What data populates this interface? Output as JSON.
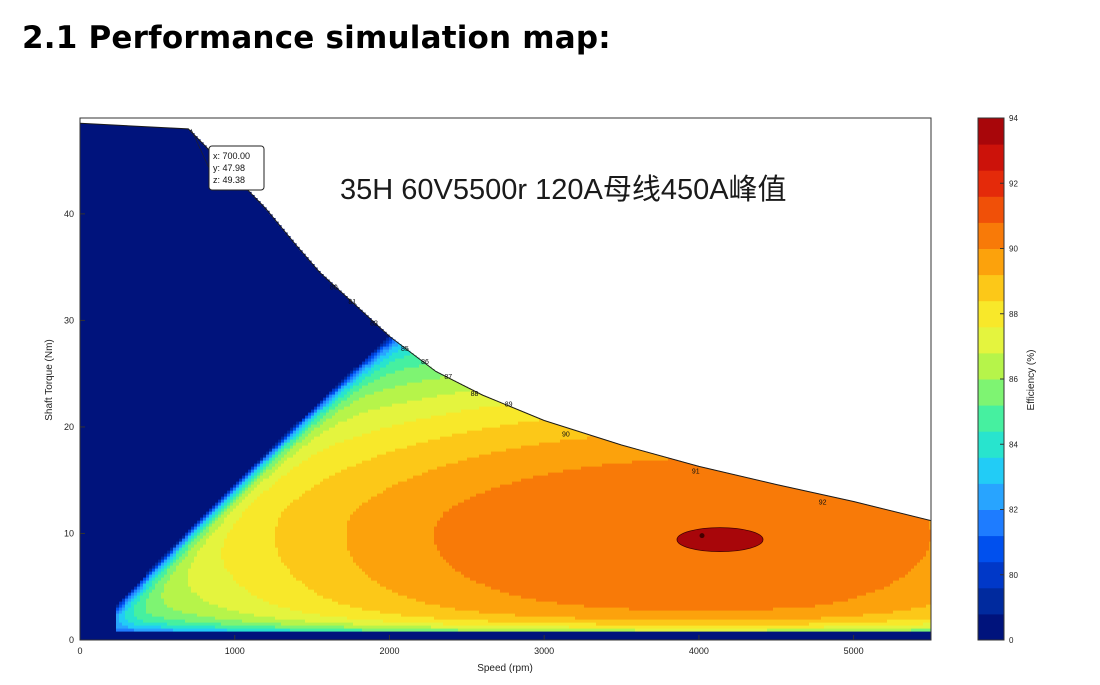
{
  "page": {
    "heading": "2.1 Performance simulation map:"
  },
  "chart_data": {
    "type": "contour",
    "title": "35H 60V5500r 120A母线450A峰值",
    "xlabel": "Speed  (rpm)",
    "ylabel": "Shaft Torque  (Nm)",
    "xlim": [
      0,
      5500
    ],
    "ylim": [
      0,
      49
    ],
    "x_ticks": [
      "0",
      "1000",
      "2000",
      "3000",
      "4000",
      "5000"
    ],
    "y_ticks": [
      "0",
      "10",
      "20",
      "30",
      "40"
    ],
    "colorbar": {
      "label": "Efficiency (%)",
      "tick_labels": [
        "0",
        "80",
        "82",
        "84",
        "86",
        "88",
        "90",
        "92",
        "94"
      ]
    },
    "torque_envelope": [
      {
        "speed": 0,
        "torque": 48.5
      },
      {
        "speed": 700,
        "torque": 47.98
      },
      {
        "speed": 800,
        "torque": 46.5
      },
      {
        "speed": 1000,
        "torque": 43.5
      },
      {
        "speed": 1200,
        "torque": 40.5
      },
      {
        "speed": 1400,
        "torque": 37
      },
      {
        "speed": 1550,
        "torque": 34.5
      },
      {
        "speed": 1700,
        "torque": 32.5
      },
      {
        "speed": 2000,
        "torque": 28.5
      },
      {
        "speed": 2300,
        "torque": 25.2
      },
      {
        "speed": 2600,
        "torque": 23
      },
      {
        "speed": 3000,
        "torque": 20.6
      },
      {
        "speed": 3500,
        "torque": 18.3
      },
      {
        "speed": 4000,
        "torque": 16.3
      },
      {
        "speed": 4500,
        "torque": 14.6
      },
      {
        "speed": 5000,
        "torque": 13
      },
      {
        "speed": 5500,
        "torque": 11.2
      }
    ],
    "contour_labels": [
      {
        "speed": 1640,
        "torque": 33.2,
        "text": "80"
      },
      {
        "speed": 1760,
        "torque": 31.8,
        "text": "81"
      },
      {
        "speed": 1900,
        "torque": 29.8,
        "text": "82"
      },
      {
        "speed": 2100,
        "torque": 27.4,
        "text": "85"
      },
      {
        "speed": 2230,
        "torque": 26.2,
        "text": "86"
      },
      {
        "speed": 2380,
        "torque": 24.8,
        "text": "87"
      },
      {
        "speed": 2550,
        "torque": 23.2,
        "text": "88"
      },
      {
        "speed": 2770,
        "torque": 22.2,
        "text": "89"
      },
      {
        "speed": 3140,
        "torque": 19.4,
        "text": "90"
      },
      {
        "speed": 3980,
        "torque": 15.9,
        "text": "91"
      },
      {
        "speed": 4800,
        "torque": 13,
        "text": "92"
      }
    ],
    "datatip": {
      "x_label": "x: 700.00",
      "y_label": "y: 47.98",
      "z_label": "z: 49.38"
    },
    "peak_efficiency_point": {
      "speed": 4020,
      "torque": 9.8
    }
  },
  "colors": {
    "low": "#00137c",
    "scale": [
      "#002a9e",
      "#0038c8",
      "#0050ee",
      "#1e7cff",
      "#28a4ff",
      "#22ccf6",
      "#28e4ce",
      "#46f0a0",
      "#7ef472",
      "#b6f44a",
      "#e4f43e",
      "#f8e82a",
      "#fcc818",
      "#fca20c",
      "#f87a08",
      "#f05008",
      "#e42a0a",
      "#cc120a",
      "#a8060a"
    ]
  }
}
